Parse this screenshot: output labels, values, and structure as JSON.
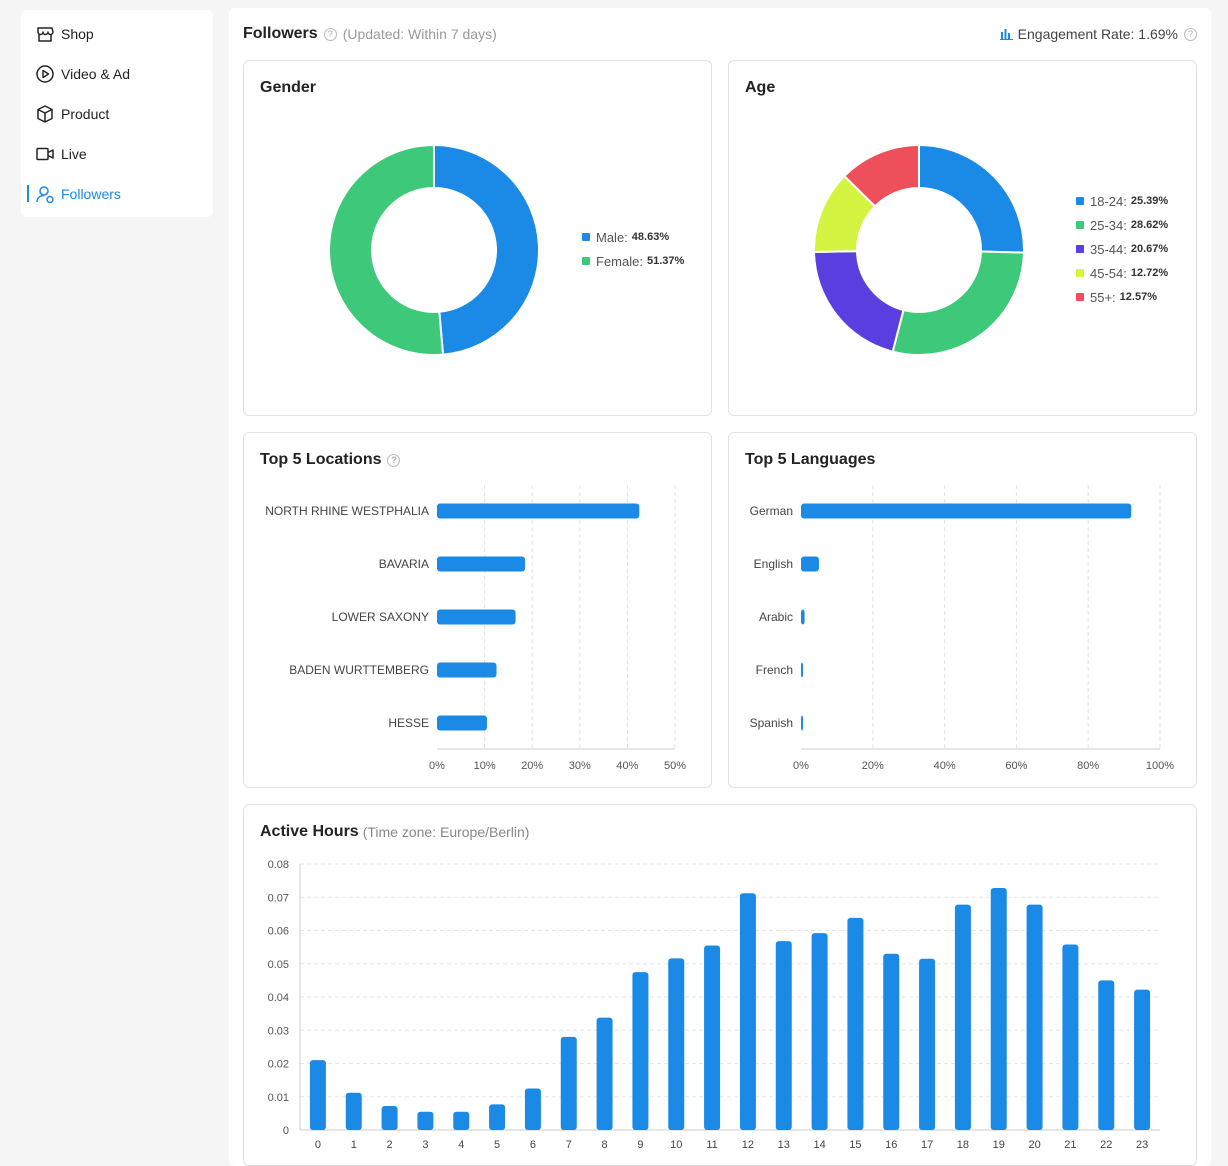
{
  "sidebar": {
    "items": [
      {
        "label": "Shop",
        "icon": "shop-icon"
      },
      {
        "label": "Video & Ad",
        "icon": "play-circle-icon"
      },
      {
        "label": "Product",
        "icon": "box-icon"
      },
      {
        "label": "Live",
        "icon": "video-camera-icon"
      },
      {
        "label": "Followers",
        "icon": "user-icon",
        "active": true
      }
    ]
  },
  "header": {
    "title": "Followers",
    "subtitle": "(Updated: Within 7 days)",
    "engagement_label": "Engagement Rate: 1.69%"
  },
  "colors": {
    "accent": "#1a8ae6",
    "bar": "#1a8ae6",
    "male": "#1a8ae6",
    "female": "#3dc979"
  },
  "gender": {
    "title": "Gender",
    "legend": [
      {
        "label": "Male:",
        "value": "48.63%"
      },
      {
        "label": "Female:",
        "value": "51.37%"
      }
    ]
  },
  "age": {
    "title": "Age",
    "legend": [
      {
        "label": "18-24:",
        "value": "25.39%"
      },
      {
        "label": "25-34:",
        "value": "28.62%"
      },
      {
        "label": "35-44:",
        "value": "20.67%"
      },
      {
        "label": "45-54:",
        "value": "12.72%"
      },
      {
        "label": "55+:",
        "value": "12.57%"
      }
    ]
  },
  "locations": {
    "title": "Top 5 Locations"
  },
  "languages": {
    "title": "Top 5 Languages"
  },
  "active_hours": {
    "title": "Active Hours",
    "timezone": "(Time zone: Europe/Berlin)"
  },
  "chart_data": [
    {
      "type": "pie",
      "title": "Gender",
      "categories": [
        "Male",
        "Female"
      ],
      "values": [
        48.63,
        51.37
      ],
      "colors": [
        "#1a8ae6",
        "#3dc979"
      ]
    },
    {
      "type": "pie",
      "title": "Age",
      "categories": [
        "18-24",
        "25-34",
        "35-44",
        "45-54",
        "55+"
      ],
      "values": [
        25.39,
        28.62,
        20.67,
        12.72,
        12.57
      ],
      "colors": [
        "#1a8ae6",
        "#3dc979",
        "#5a3ee0",
        "#d3f542",
        "#ef4f5a"
      ]
    },
    {
      "type": "bar",
      "title": "Top 5 Locations",
      "orientation": "horizontal",
      "categories": [
        "NORTH RHINE WESTPHALIA",
        "BAVARIA",
        "LOWER SAXONY",
        "BADEN WURTTEMBERG",
        "HESSE"
      ],
      "values": [
        42.5,
        18.5,
        16.5,
        12.5,
        10.5
      ],
      "xlim": [
        0,
        50
      ],
      "ticks": [
        "0%",
        "10%",
        "20%",
        "30%",
        "40%",
        "50%"
      ]
    },
    {
      "type": "bar",
      "title": "Top 5 Languages",
      "orientation": "horizontal",
      "categories": [
        "German",
        "English",
        "Arabic",
        "French",
        "Spanish"
      ],
      "values": [
        92,
        5,
        1,
        0.4,
        0.3
      ],
      "xlim": [
        0,
        100
      ],
      "ticks": [
        "0%",
        "20%",
        "40%",
        "60%",
        "80%",
        "100%"
      ]
    },
    {
      "type": "bar",
      "title": "Active Hours",
      "categories": [
        "0",
        "1",
        "2",
        "3",
        "4",
        "5",
        "6",
        "7",
        "8",
        "9",
        "10",
        "11",
        "12",
        "13",
        "14",
        "15",
        "16",
        "17",
        "18",
        "19",
        "20",
        "21",
        "22",
        "23"
      ],
      "values": [
        0.021,
        0.0112,
        0.0072,
        0.0055,
        0.0055,
        0.0077,
        0.0125,
        0.028,
        0.0338,
        0.0475,
        0.0516,
        0.0555,
        0.0712,
        0.0568,
        0.0592,
        0.0638,
        0.053,
        0.0515,
        0.0678,
        0.0728,
        0.0678,
        0.0558,
        0.045,
        0.0422
      ],
      "ylim": [
        0,
        0.08
      ],
      "ticks": [
        "0",
        "0.01",
        "0.02",
        "0.03",
        "0.04",
        "0.05",
        "0.06",
        "0.07",
        "0.08"
      ]
    }
  ]
}
